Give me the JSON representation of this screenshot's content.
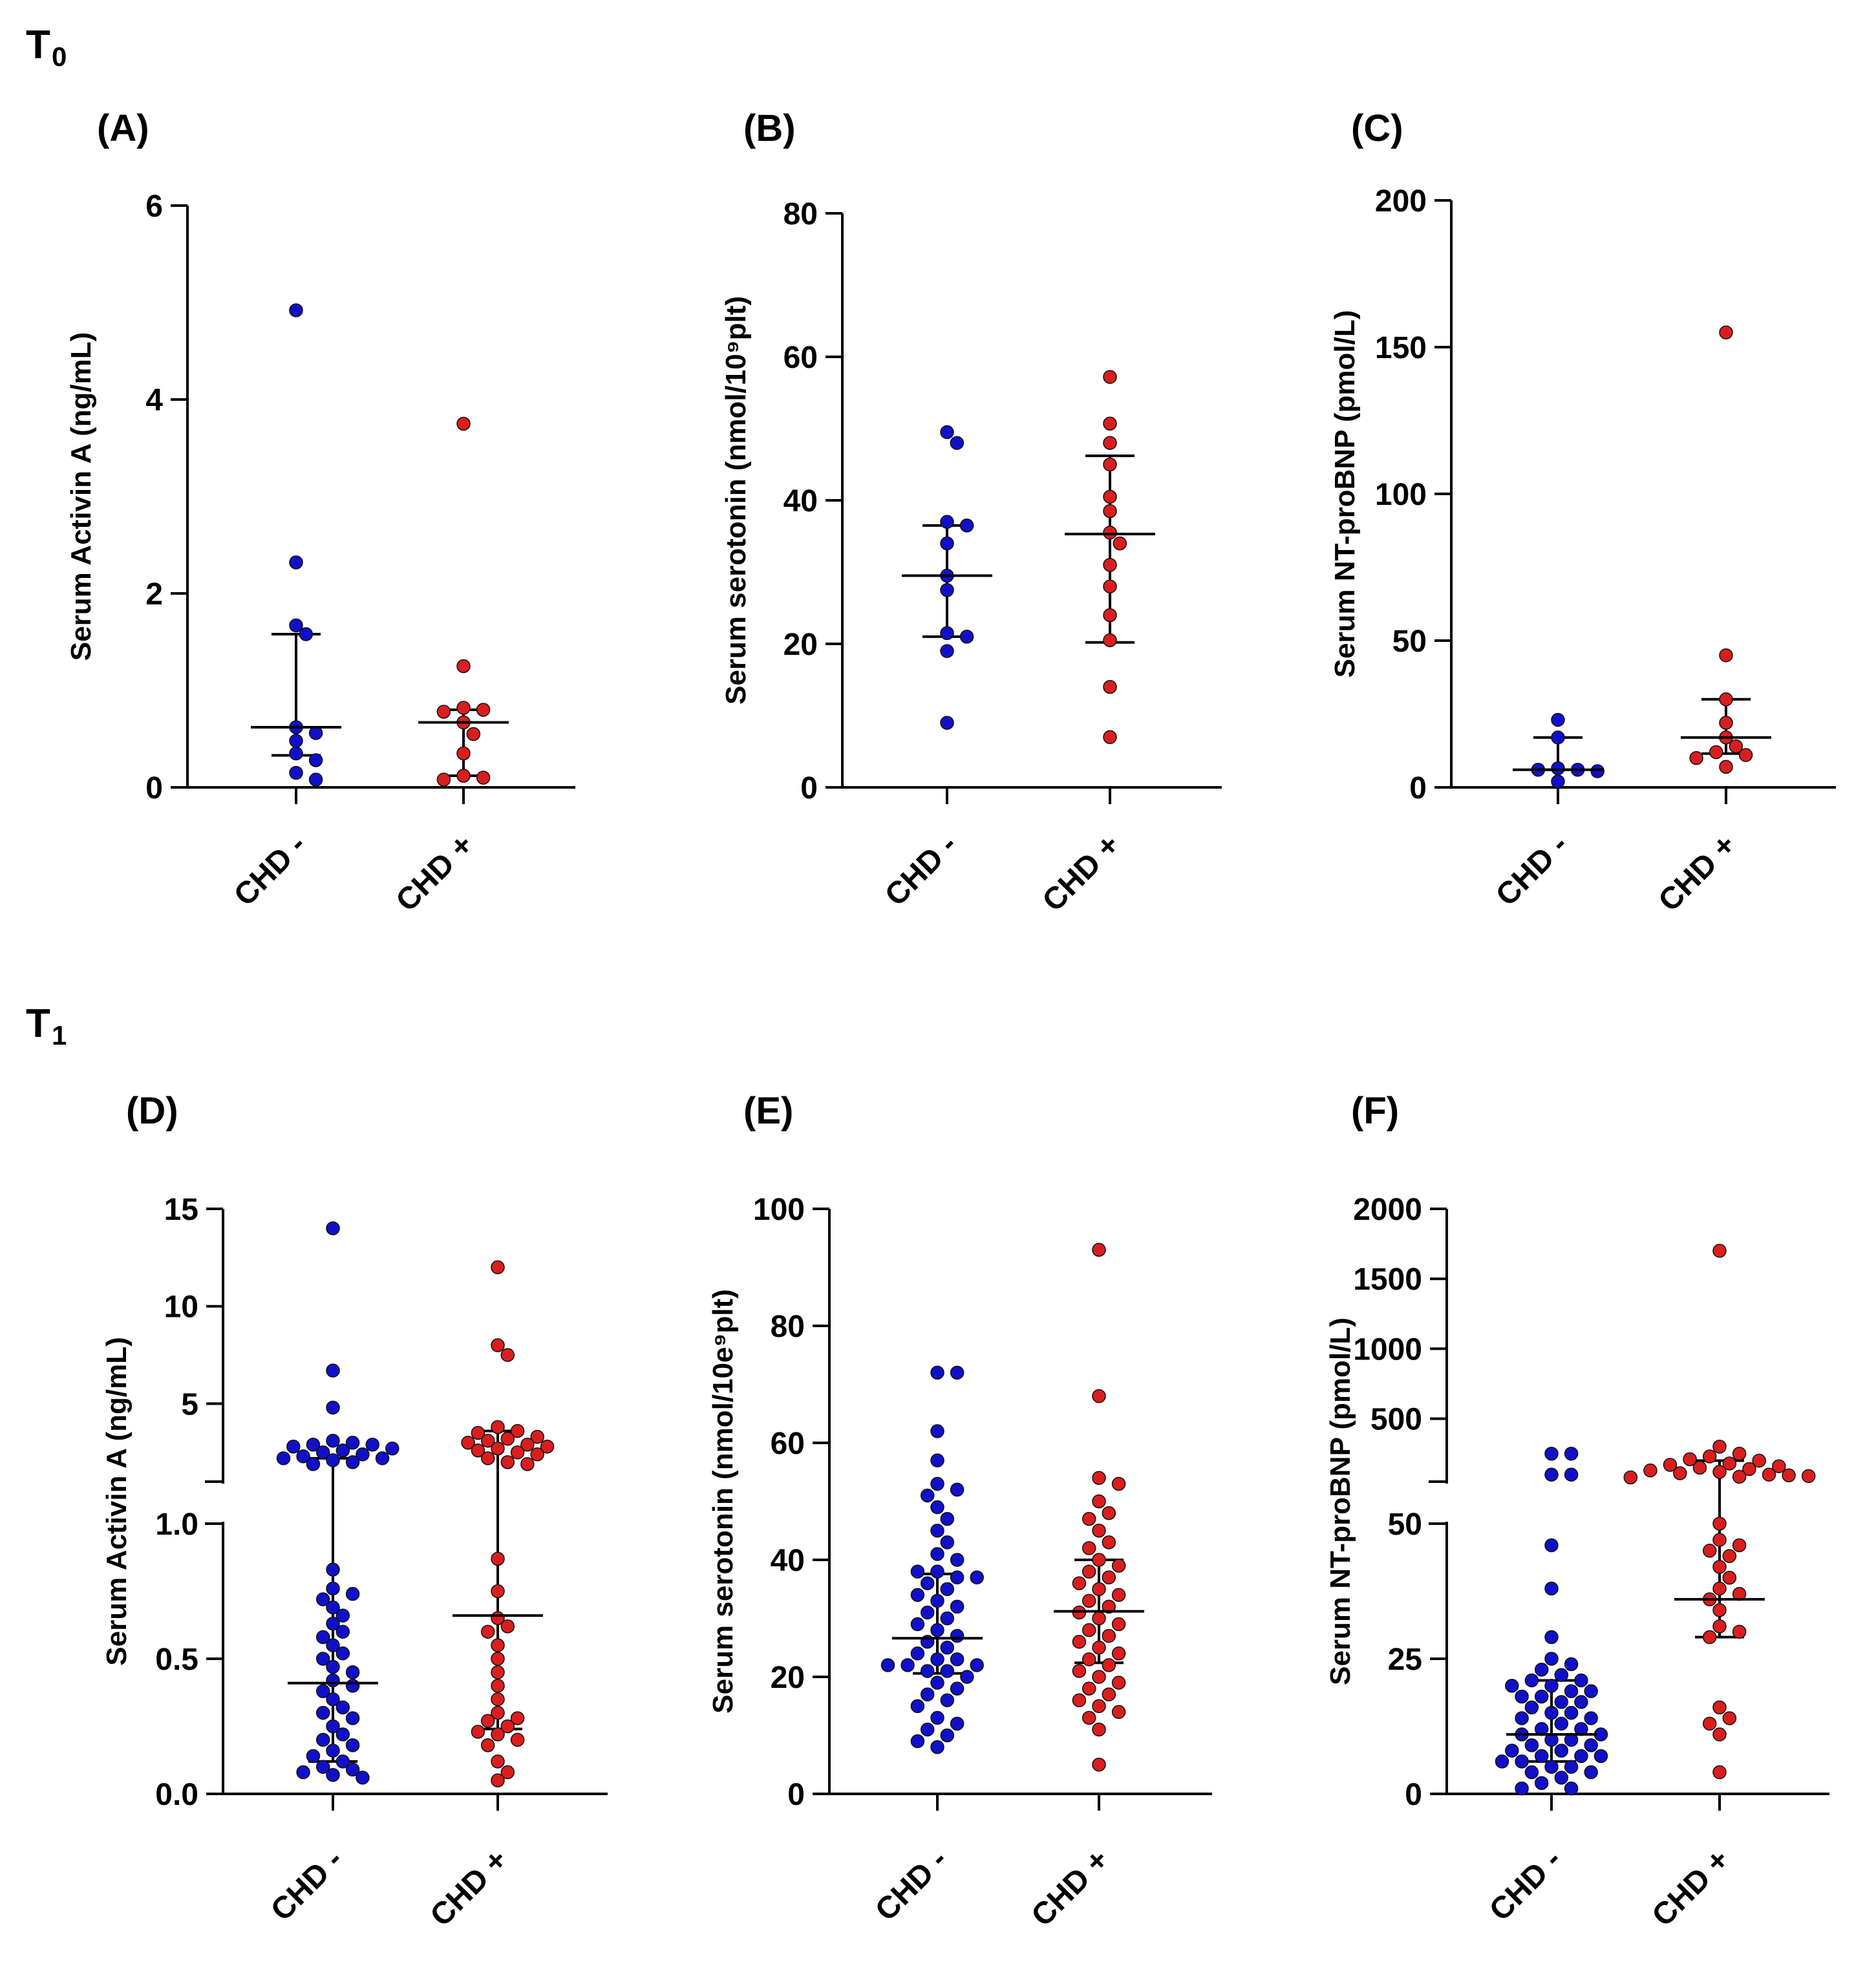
{
  "time_points": [
    {
      "label": "T",
      "sub": "0"
    },
    {
      "label": "T",
      "sub": "1"
    }
  ],
  "colors": {
    "chd_neg": "#1010c8",
    "chd_pos": "#d91e1e",
    "axis": "#000000"
  },
  "chart_data": [
    {
      "panel": "(A)",
      "type": "scatter",
      "ylabel": "Serum Activin A (ng/mL)",
      "ylim": [
        0,
        6
      ],
      "yticks": [
        0,
        2,
        4,
        6
      ],
      "ytick_labels": [
        "0",
        "2",
        "4",
        "6"
      ],
      "categories": [
        "CHD -",
        "CHD +"
      ],
      "series": [
        {
          "name": "CHD -",
          "values": [
            4.92,
            2.32,
            1.67,
            1.58,
            0.62,
            0.56,
            0.48,
            0.35,
            0.28,
            0.15,
            0.08
          ],
          "median": 0.62,
          "q1": 0.33,
          "q3": 1.58
        },
        {
          "name": "CHD +",
          "values": [
            3.75,
            1.25,
            0.82,
            0.8,
            0.78,
            0.67,
            0.55,
            0.35,
            0.12,
            0.1,
            0.08
          ],
          "median": 0.67,
          "q1": 0.12,
          "q3": 0.8
        }
      ]
    },
    {
      "panel": "(B)",
      "type": "scatter",
      "ylabel": "Serum serotonin (nmol/10⁹plt)",
      "ylim": [
        0,
        80
      ],
      "yticks": [
        0,
        20,
        40,
        60,
        80
      ],
      "ytick_labels": [
        "0",
        "20",
        "40",
        "60",
        "80"
      ],
      "categories": [
        "CHD -",
        "CHD +"
      ],
      "series": [
        {
          "name": "CHD -",
          "values": [
            49.5,
            48.0,
            37.0,
            36.5,
            34.0,
            29.5,
            27.5,
            21.5,
            21.0,
            19.0,
            9.0
          ],
          "median": 29.5,
          "q1": 21.0,
          "q3": 36.5
        },
        {
          "name": "CHD +",
          "values": [
            57.2,
            50.7,
            48.0,
            45.0,
            40.5,
            38.5,
            35.5,
            34.0,
            31.0,
            28.0,
            24.0,
            20.5,
            14.0,
            7.0
          ],
          "median": 35.3,
          "q1": 20.2,
          "q3": 46.2
        }
      ]
    },
    {
      "panel": "(C)",
      "type": "scatter",
      "ylabel": "Serum NT-proBNP (pmol/L)",
      "ylim": [
        0,
        200
      ],
      "yticks": [
        0,
        50,
        100,
        150,
        200
      ],
      "ytick_labels": [
        "0",
        "50",
        "100",
        "150",
        "200"
      ],
      "categories": [
        "CHD -",
        "CHD +"
      ],
      "series": [
        {
          "name": "CHD -",
          "values": [
            23.0,
            17.0,
            6.5,
            6.0,
            6.0,
            5.5,
            2.0
          ],
          "median": 6.0,
          "q1": 6.0,
          "q3": 17.0
        },
        {
          "name": "CHD +",
          "values": [
            155.0,
            45.0,
            30.0,
            22.0,
            17.0,
            14.0,
            12.0,
            11.0,
            10.0,
            7.0
          ],
          "median": 17.0,
          "q1": 11.5,
          "q3": 30.0
        }
      ]
    },
    {
      "panel": "(D)",
      "type": "scatter",
      "ylabel": "Serum Activin A (ng/mL)",
      "axis_break": {
        "lower": [
          0,
          1.0
        ],
        "upper": [
          1.0,
          15
        ]
      },
      "yticks": [
        0.0,
        0.5,
        1.0,
        5,
        10,
        15
      ],
      "ytick_labels": [
        "0.0",
        "0.5",
        "1.0",
        "5",
        "10",
        "15"
      ],
      "categories": [
        "CHD -",
        "CHD +"
      ],
      "series": [
        {
          "name": "CHD -",
          "values": [
            14.0,
            6.7,
            4.8,
            3.1,
            3.0,
            2.9,
            2.9,
            2.8,
            2.7,
            2.6,
            2.5,
            2.4,
            2.3,
            2.2,
            2.2,
            2.1,
            2.0,
            1.9,
            0.83,
            0.76,
            0.74,
            0.72,
            0.69,
            0.66,
            0.63,
            0.6,
            0.58,
            0.55,
            0.52,
            0.5,
            0.47,
            0.45,
            0.42,
            0.4,
            0.38,
            0.35,
            0.32,
            0.3,
            0.28,
            0.25,
            0.22,
            0.2,
            0.18,
            0.16,
            0.14,
            0.12,
            0.1,
            0.09,
            0.08,
            0.07,
            0.06
          ],
          "median": 0.41,
          "q1": 0.12,
          "q3": 2.2
        },
        {
          "name": "CHD +",
          "values": [
            12.0,
            8.0,
            7.5,
            3.8,
            3.6,
            3.5,
            3.3,
            3.2,
            3.1,
            3.0,
            2.9,
            2.8,
            2.7,
            2.6,
            2.5,
            2.4,
            2.2,
            2.0,
            1.9,
            0.87,
            0.75,
            0.65,
            0.62,
            0.6,
            0.55,
            0.5,
            0.45,
            0.4,
            0.35,
            0.3,
            0.28,
            0.27,
            0.25,
            0.23,
            0.22,
            0.2,
            0.18,
            0.12,
            0.08,
            0.05
          ],
          "median": 0.66,
          "q1": 0.24,
          "q3": 3.6
        }
      ]
    },
    {
      "panel": "(E)",
      "type": "scatter",
      "ylabel": "Serum serotonin (nmol/10e⁹plt)",
      "ylim": [
        0,
        100
      ],
      "yticks": [
        0,
        20,
        40,
        60,
        80,
        100
      ],
      "ytick_labels": [
        "0",
        "20",
        "40",
        "60",
        "80",
        "100"
      ],
      "categories": [
        "CHD -",
        "CHD +"
      ],
      "series": [
        {
          "name": "CHD -",
          "values": [
            72,
            72,
            62,
            57,
            53,
            52,
            51,
            49,
            47,
            45,
            43,
            41,
            40,
            38,
            38,
            37,
            37,
            36,
            35,
            34,
            33,
            32,
            31,
            30,
            29,
            28,
            27,
            26,
            25,
            24,
            23,
            23,
            22,
            22,
            22,
            21,
            21,
            20,
            19,
            18,
            17,
            16,
            15,
            13,
            12,
            11,
            10,
            9,
            8
          ],
          "median": 26.6,
          "q1": 20.6,
          "q3": 37.6
        },
        {
          "name": "CHD +",
          "values": [
            93,
            68,
            54,
            53,
            50,
            48,
            47,
            45,
            43,
            42,
            40,
            39,
            38,
            37,
            36,
            35,
            34,
            33,
            32,
            31,
            30,
            29,
            28,
            27,
            26,
            25,
            24,
            23,
            22,
            21,
            20,
            19,
            18,
            17,
            16,
            15,
            14,
            13,
            11,
            5
          ],
          "median": 31.2,
          "q1": 22.4,
          "q3": 40.0
        }
      ]
    },
    {
      "panel": "(F)",
      "type": "scatter",
      "ylabel": "Serum NT-proBNP (pmol/L)",
      "axis_break": {
        "lower": [
          0,
          50
        ],
        "upper": [
          50,
          2000
        ]
      },
      "yticks": [
        0,
        25,
        50,
        500,
        1000,
        1500,
        2000
      ],
      "ytick_labels": [
        "0",
        "25",
        "50",
        "500",
        "1000",
        "1500",
        "2000"
      ],
      "categories": [
        "CHD -",
        "CHD +"
      ],
      "series": [
        {
          "name": "CHD -",
          "values": [
            250,
            250,
            100,
            100,
            46,
            38,
            29,
            25,
            24,
            23,
            22,
            21,
            21,
            20,
            20,
            19,
            19,
            18,
            18,
            17,
            17,
            16,
            15,
            15,
            14,
            14,
            13,
            12,
            12,
            11,
            11,
            10,
            10,
            9,
            9,
            8,
            8,
            7,
            7,
            7,
            6,
            6,
            5,
            5,
            4,
            4,
            3,
            2,
            1,
            1
          ],
          "median": 11.0,
          "q1": 6.0,
          "q3": 21.0
        },
        {
          "name": "CHD +",
          "values": [
            1700,
            300,
            250,
            230,
            210,
            200,
            180,
            170,
            160,
            150,
            140,
            130,
            120,
            110,
            100,
            95,
            90,
            85,
            80,
            50,
            47,
            46,
            45,
            44,
            42,
            40,
            38,
            37,
            36,
            34,
            31,
            30,
            29,
            16,
            14,
            13,
            11,
            4
          ],
          "median": 36.0,
          "q1": 29.0,
          "q3": 200.0
        }
      ]
    }
  ]
}
